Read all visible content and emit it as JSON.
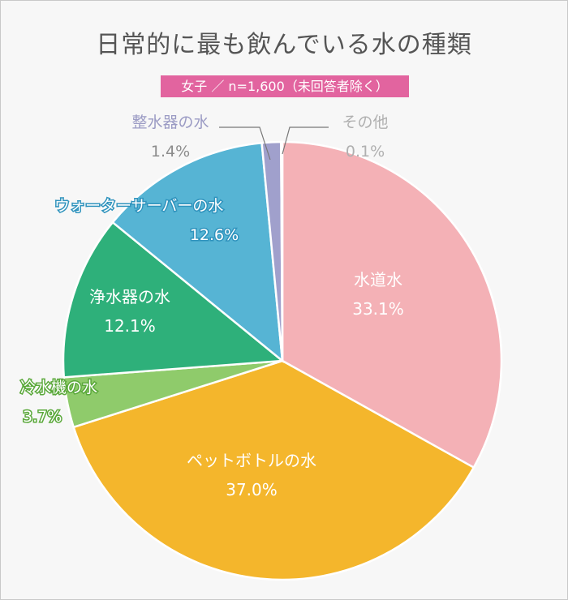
{
  "title": "日常的に最も飲んでいる水の種類",
  "subtitle": "女子 ／ n=1,600（未回答者除く）",
  "chart_data": {
    "type": "pie",
    "title": "日常的に最も飲んでいる水の種類",
    "subtitle": "女子 ／ n=1,600（未回答者除く）",
    "slices": [
      {
        "label": "水道水",
        "value": 33.1,
        "display": "33.1%",
        "color": "#f4b1b6"
      },
      {
        "label": "ペットボトルの水",
        "value": 37.0,
        "display": "37.0%",
        "color": "#f4b62c"
      },
      {
        "label": "冷水機の水",
        "value": 3.7,
        "display": "3.7%",
        "color": "#8fcb6b"
      },
      {
        "label": "浄水器の水",
        "value": 12.1,
        "display": "12.1%",
        "color": "#2eb07a"
      },
      {
        "label": "ウォーターサーバーの水",
        "value": 12.6,
        "display": "12.6%",
        "color": "#56b4d4"
      },
      {
        "label": "整水器の水",
        "value": 1.4,
        "display": "1.4%",
        "color": "#a0a0cc"
      },
      {
        "label": "その他",
        "value": 0.1,
        "display": "0.1%",
        "color": "#c8c8c8"
      }
    ]
  }
}
